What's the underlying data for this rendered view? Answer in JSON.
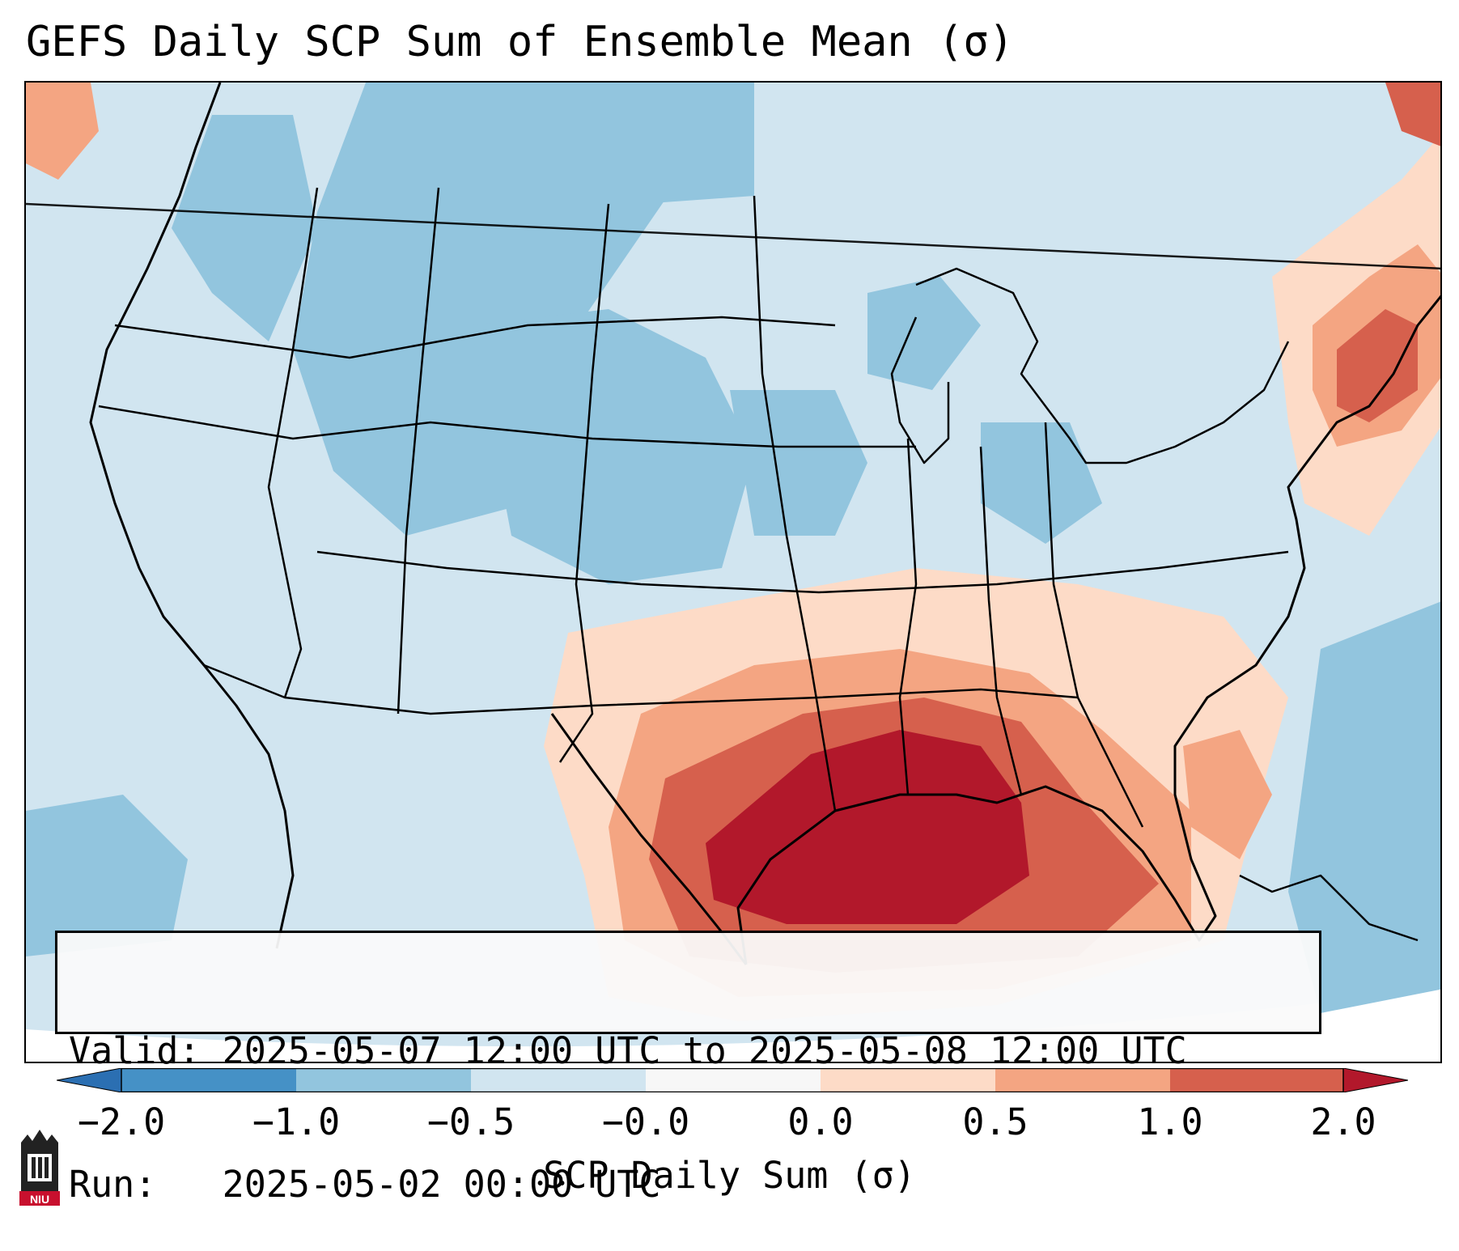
{
  "title": "GEFS Daily SCP Sum of Ensemble Mean (σ)",
  "info": {
    "valid_line": "Valid: 2025-05-07 12:00 UTC to 2025-05-08 12:00 UTC",
    "run_line": "Run:   2025-05-02 00:00 UTC"
  },
  "colorbar": {
    "label": "SCP Daily Sum (σ)",
    "ticks": [
      "−2.0",
      "−1.0",
      "−0.5",
      "−0.0",
      "0.0",
      "0.5",
      "1.0",
      "2.0"
    ],
    "bins": [
      {
        "range": "< -2.0",
        "color": "#2b6fb2"
      },
      {
        "range": "-2.0 to -1.0",
        "color": "#4591c6"
      },
      {
        "range": "-1.0 to -0.5",
        "color": "#92c5de"
      },
      {
        "range": "-0.5 to -0.0",
        "color": "#d1e5f0"
      },
      {
        "range": "-0.0 to 0.0",
        "color": "#f7f7f7"
      },
      {
        "range": "0.0 to 0.5",
        "color": "#fddbc7"
      },
      {
        "range": "0.5 to 1.0",
        "color": "#f4a582"
      },
      {
        "range": "1.0 to 2.0",
        "color": "#d6604d"
      },
      {
        "range": "> 2.0",
        "color": "#b2182b"
      }
    ]
  },
  "map": {
    "region": "Continental United States",
    "field": "SCP daily sum anomaly (sigma)",
    "highlights": [
      "Strongest positive anomaly (>2.0) over Louisiana, Mississippi and the northern Gulf of Mexico",
      "Positive anomaly (1.0 to 2.0) along the Gulf Coast into Texas, Alabama and Florida panhandle",
      "Positive anomalies (0.5 to 2.0) over coastal New England",
      "Negative anomalies (-1.0 to -0.5) across the northern Rockies and Plains"
    ]
  },
  "logo_text": "NIU"
}
